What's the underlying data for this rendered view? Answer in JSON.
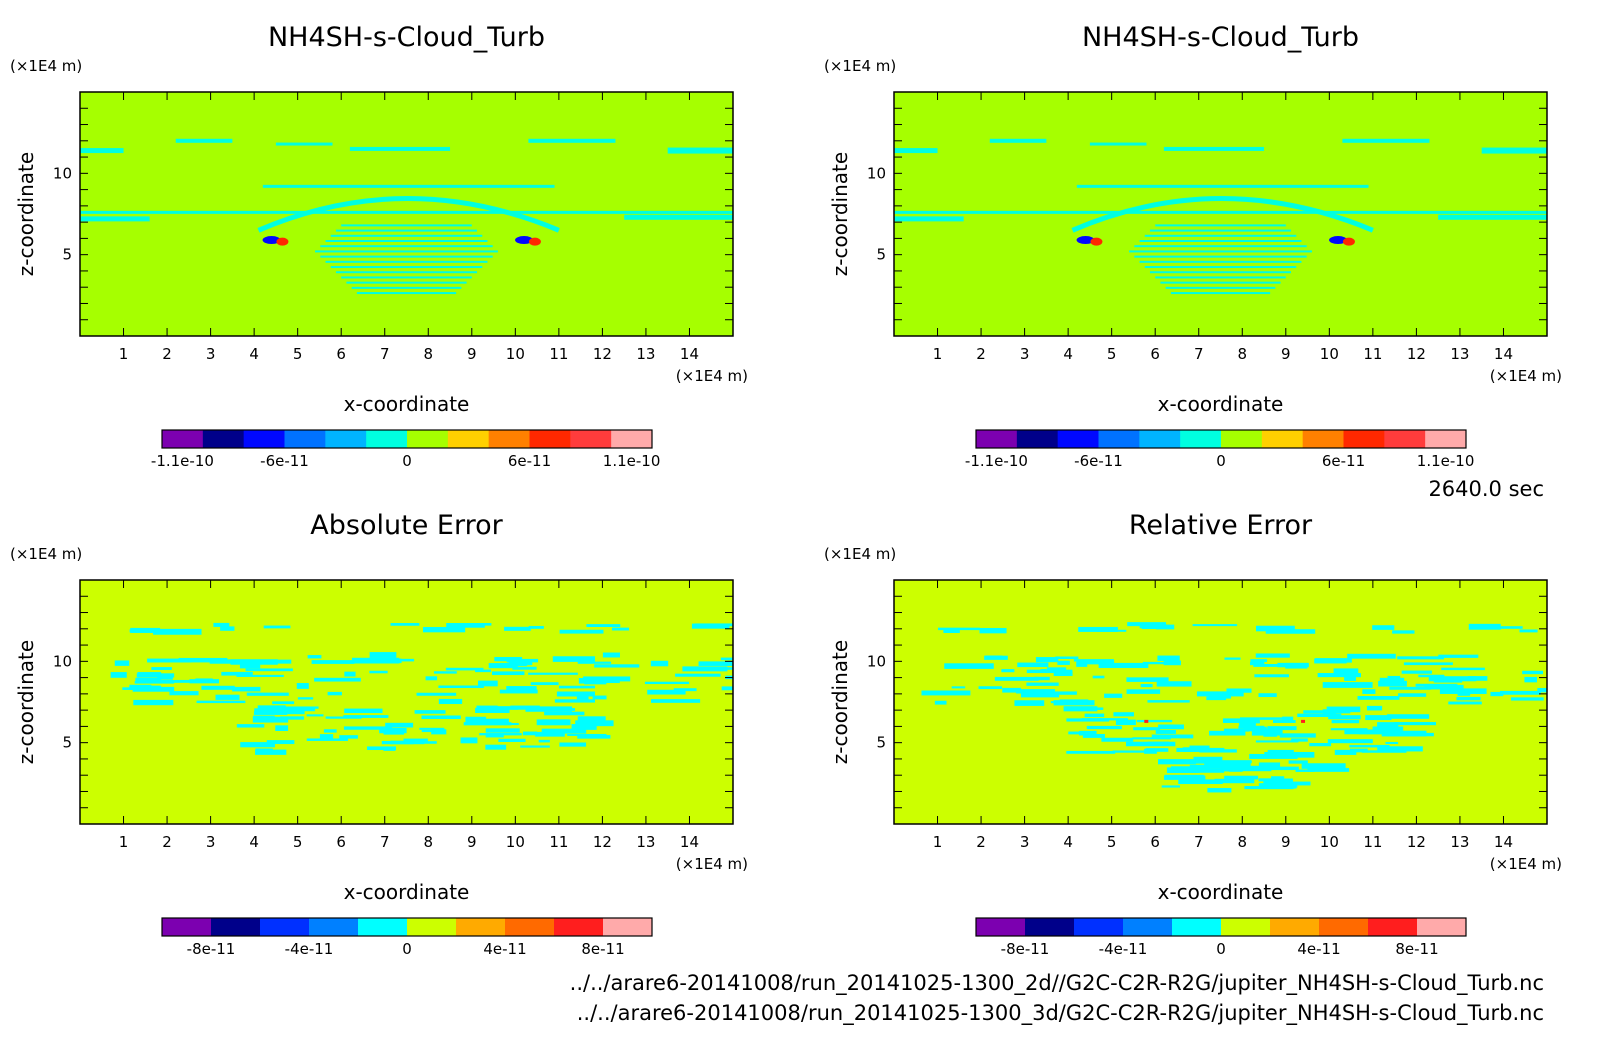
{
  "chart_data": [
    {
      "type": "heatmap",
      "id": "tl",
      "title": "NH4SH-s-Cloud_Turb",
      "xlabel": "x-coordinate",
      "ylabel": "z-coordinate",
      "x_unit": "(×1E4 m)",
      "y_unit": "(×1E4 m)",
      "xlim": [
        0,
        15
      ],
      "ylim": [
        0,
        15
      ],
      "xticks": [
        1,
        2,
        3,
        4,
        5,
        6,
        7,
        8,
        9,
        10,
        11,
        12,
        13,
        14
      ],
      "yticks": [
        5,
        10
      ],
      "background_color": "#a6ff00",
      "colorbar": {
        "colors": [
          "#7c00b0",
          "#00008a",
          "#0008ff",
          "#0072ff",
          "#00b4ff",
          "#00ffe0",
          "#a6ff00",
          "#ffd000",
          "#ff8000",
          "#ff2800",
          "#ff3c3c",
          "#ffaaaa"
        ],
        "labels": [
          {
            "text": "-1.1e-10",
            "value": -1.1e-10
          },
          {
            "text": "-6e-11",
            "value": -6e-11
          },
          {
            "text": "0",
            "value": 0
          },
          {
            "text": "6e-11",
            "value": 6e-11
          },
          {
            "text": "1.1e-10",
            "value": 1.1e-10
          }
        ],
        "range": [
          -1.2e-10,
          1.2e-10
        ]
      },
      "features": "wave"
    },
    {
      "type": "heatmap",
      "id": "tr",
      "title": "NH4SH-s-Cloud_Turb",
      "xlabel": "x-coordinate",
      "ylabel": "z-coordinate",
      "x_unit": "(×1E4 m)",
      "y_unit": "(×1E4 m)",
      "xlim": [
        0,
        15
      ],
      "ylim": [
        0,
        15
      ],
      "xticks": [
        1,
        2,
        3,
        4,
        5,
        6,
        7,
        8,
        9,
        10,
        11,
        12,
        13,
        14
      ],
      "yticks": [
        5,
        10
      ],
      "background_color": "#a6ff00",
      "colorbar": {
        "colors": [
          "#7c00b0",
          "#00008a",
          "#0008ff",
          "#0072ff",
          "#00b4ff",
          "#00ffe0",
          "#a6ff00",
          "#ffd000",
          "#ff8000",
          "#ff2800",
          "#ff3c3c",
          "#ffaaaa"
        ],
        "labels": [
          {
            "text": "-1.1e-10",
            "value": -1.1e-10
          },
          {
            "text": "-6e-11",
            "value": -6e-11
          },
          {
            "text": "0",
            "value": 0
          },
          {
            "text": "6e-11",
            "value": 6e-11
          },
          {
            "text": "1.1e-10",
            "value": 1.1e-10
          }
        ],
        "range": [
          -1.2e-10,
          1.2e-10
        ]
      },
      "features": "wave"
    },
    {
      "type": "heatmap",
      "id": "bl",
      "title": "Absolute Error",
      "xlabel": "x-coordinate",
      "ylabel": "z-coordinate",
      "x_unit": "(×1E4 m)",
      "y_unit": "(×1E4 m)",
      "xlim": [
        0,
        15
      ],
      "ylim": [
        0,
        15
      ],
      "xticks": [
        1,
        2,
        3,
        4,
        5,
        6,
        7,
        8,
        9,
        10,
        11,
        12,
        13,
        14
      ],
      "yticks": [
        5,
        10
      ],
      "background_color": "#ccff00",
      "colorbar": {
        "colors": [
          "#7c00b0",
          "#00008a",
          "#0030ff",
          "#0080ff",
          "#00ffff",
          "#ccff00",
          "#ffaa00",
          "#ff6a00",
          "#ff1e1e",
          "#ffaaaa"
        ],
        "labels": [
          {
            "text": "-8e-11",
            "value": -8e-11
          },
          {
            "text": "-4e-11",
            "value": -4e-11
          },
          {
            "text": "0",
            "value": 0
          },
          {
            "text": "4e-11",
            "value": 4e-11
          },
          {
            "text": "8e-11",
            "value": 8e-11
          }
        ],
        "range": [
          -1e-10,
          1e-10
        ]
      },
      "features": "error"
    },
    {
      "type": "heatmap",
      "id": "br",
      "title": "Relative Error",
      "xlabel": "x-coordinate",
      "ylabel": "z-coordinate",
      "x_unit": "(×1E4 m)",
      "y_unit": "(×1E4 m)",
      "xlim": [
        0,
        15
      ],
      "ylim": [
        0,
        15
      ],
      "xticks": [
        1,
        2,
        3,
        4,
        5,
        6,
        7,
        8,
        9,
        10,
        11,
        12,
        13,
        14
      ],
      "yticks": [
        5,
        10
      ],
      "background_color": "#ccff00",
      "colorbar": {
        "colors": [
          "#7c00b0",
          "#00008a",
          "#0030ff",
          "#0080ff",
          "#00ffff",
          "#ccff00",
          "#ffaa00",
          "#ff6a00",
          "#ff1e1e",
          "#ffaaaa"
        ],
        "labels": [
          {
            "text": "-8e-11",
            "value": -8e-11
          },
          {
            "text": "-4e-11",
            "value": -4e-11
          },
          {
            "text": "0",
            "value": 0
          },
          {
            "text": "4e-11",
            "value": 4e-11
          },
          {
            "text": "8e-11",
            "value": 8e-11
          }
        ],
        "range": [
          -1e-10,
          1e-10
        ]
      },
      "features": "error"
    }
  ],
  "time_label": "2640.0 sec",
  "footer": {
    "line1": "../../arare6-20141008/run_20141025-1300_2d//G2C-C2R-R2G/jupiter_NH4SH-s-Cloud_Turb.nc",
    "line2": "../../arare6-20141008/run_20141025-1300_3d/G2C-C2R-R2G/jupiter_NH4SH-s-Cloud_Turb.nc"
  }
}
